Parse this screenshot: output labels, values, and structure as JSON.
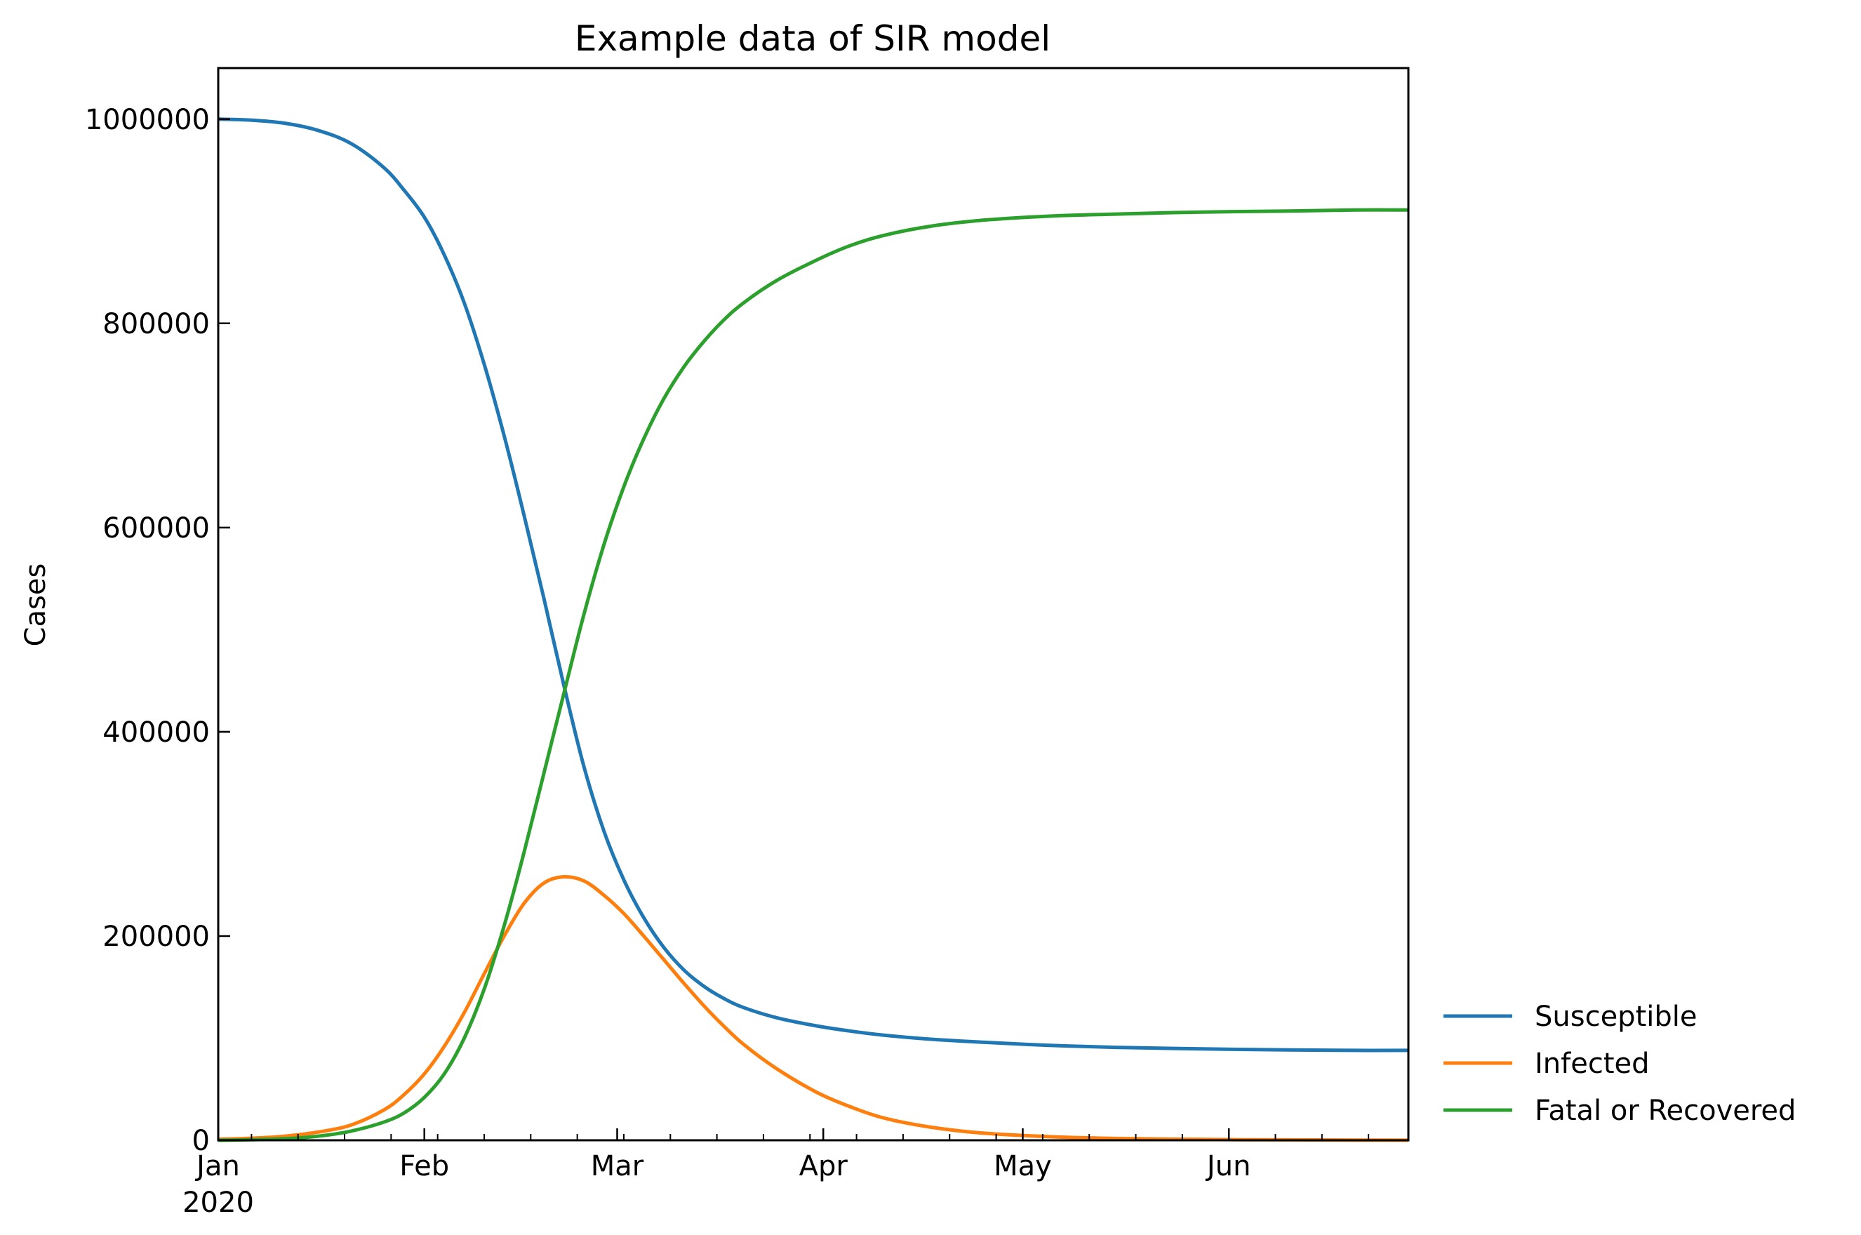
{
  "chart_data": {
    "type": "line",
    "title": "Example data of SIR model",
    "xlabel": "",
    "ylabel": "Cases",
    "x_axis": {
      "type": "date",
      "range": [
        "2020-01-01",
        "2020-06-28"
      ],
      "major_ticks": [
        {
          "date": "2020-01-01",
          "label": "Jan",
          "sublabel": "2020"
        },
        {
          "date": "2020-02-01",
          "label": "Feb"
        },
        {
          "date": "2020-03-01",
          "label": "Mar"
        },
        {
          "date": "2020-04-01",
          "label": "Apr"
        },
        {
          "date": "2020-05-01",
          "label": "May"
        },
        {
          "date": "2020-06-01",
          "label": "Jun"
        }
      ],
      "minor_ticks": [
        "2020-01-06",
        "2020-01-13",
        "2020-01-20",
        "2020-01-27",
        "2020-02-03",
        "2020-02-10",
        "2020-02-17",
        "2020-02-24",
        "2020-03-02",
        "2020-03-09",
        "2020-03-16",
        "2020-03-23",
        "2020-03-30",
        "2020-04-06",
        "2020-04-13",
        "2020-04-20",
        "2020-04-27",
        "2020-05-04",
        "2020-05-11",
        "2020-05-18",
        "2020-05-25",
        "2020-06-01",
        "2020-06-08",
        "2020-06-15",
        "2020-06-22"
      ]
    },
    "ylim": [
      0,
      1050000
    ],
    "yticks": [
      {
        "value": 0,
        "label": "0"
      },
      {
        "value": 200000,
        "label": "200000"
      },
      {
        "value": 400000,
        "label": "400000"
      },
      {
        "value": 600000,
        "label": "600000"
      },
      {
        "value": 800000,
        "label": "800000"
      },
      {
        "value": 1000000,
        "label": "1000000"
      }
    ],
    "grid": false,
    "legend_position": "outside-right-bottom",
    "series": [
      {
        "name": "Susceptible",
        "color": "#1f77b4",
        "points": [
          [
            "2020-01-01",
            1000000
          ],
          [
            "2020-01-06",
            999000
          ],
          [
            "2020-01-11",
            996000
          ],
          [
            "2020-01-16",
            989000
          ],
          [
            "2020-01-21",
            976000
          ],
          [
            "2020-01-26",
            952000
          ],
          [
            "2020-01-29",
            930000
          ],
          [
            "2020-02-01",
            904000
          ],
          [
            "2020-02-04",
            867000
          ],
          [
            "2020-02-07",
            820000
          ],
          [
            "2020-02-10",
            760000
          ],
          [
            "2020-02-13",
            690000
          ],
          [
            "2020-02-16",
            612000
          ],
          [
            "2020-02-19",
            530000
          ],
          [
            "2020-02-22",
            445000
          ],
          [
            "2020-02-25",
            366000
          ],
          [
            "2020-02-28",
            303000
          ],
          [
            "2020-03-02",
            255000
          ],
          [
            "2020-03-05",
            218000
          ],
          [
            "2020-03-08",
            189000
          ],
          [
            "2020-03-11",
            167000
          ],
          [
            "2020-03-14",
            151000
          ],
          [
            "2020-03-17",
            139000
          ],
          [
            "2020-03-20",
            130000
          ],
          [
            "2020-03-25",
            120000
          ],
          [
            "2020-03-31",
            112000
          ],
          [
            "2020-04-05",
            107000
          ],
          [
            "2020-04-10",
            103000
          ],
          [
            "2020-04-17",
            99000
          ],
          [
            "2020-04-25",
            96000
          ],
          [
            "2020-05-05",
            93000
          ],
          [
            "2020-05-15",
            91000
          ],
          [
            "2020-05-28",
            89500
          ],
          [
            "2020-06-10",
            88500
          ],
          [
            "2020-06-20",
            88000
          ],
          [
            "2020-06-28",
            88000
          ]
        ]
      },
      {
        "name": "Infected",
        "color": "#ff7f0e",
        "points": [
          [
            "2020-01-01",
            1000
          ],
          [
            "2020-01-06",
            2000
          ],
          [
            "2020-01-11",
            4000
          ],
          [
            "2020-01-16",
            8000
          ],
          [
            "2020-01-21",
            15000
          ],
          [
            "2020-01-26",
            30000
          ],
          [
            "2020-01-29",
            45000
          ],
          [
            "2020-02-01",
            65000
          ],
          [
            "2020-02-04",
            92000
          ],
          [
            "2020-02-07",
            125000
          ],
          [
            "2020-02-10",
            163000
          ],
          [
            "2020-02-13",
            200000
          ],
          [
            "2020-02-16",
            232000
          ],
          [
            "2020-02-19",
            252000
          ],
          [
            "2020-02-22",
            258000
          ],
          [
            "2020-02-25",
            254000
          ],
          [
            "2020-02-28",
            240000
          ],
          [
            "2020-03-02",
            222000
          ],
          [
            "2020-03-05",
            200000
          ],
          [
            "2020-03-08",
            177000
          ],
          [
            "2020-03-11",
            154000
          ],
          [
            "2020-03-14",
            132000
          ],
          [
            "2020-03-17",
            112000
          ],
          [
            "2020-03-20",
            94000
          ],
          [
            "2020-03-25",
            70000
          ],
          [
            "2020-03-31",
            47000
          ],
          [
            "2020-04-05",
            33000
          ],
          [
            "2020-04-10",
            22000
          ],
          [
            "2020-04-17",
            13000
          ],
          [
            "2020-04-25",
            7000
          ],
          [
            "2020-05-05",
            3500
          ],
          [
            "2020-05-15",
            1800
          ],
          [
            "2020-05-28",
            800
          ],
          [
            "2020-06-10",
            400
          ],
          [
            "2020-06-20",
            200
          ],
          [
            "2020-06-28",
            100
          ]
        ]
      },
      {
        "name": "Fatal or Recovered",
        "color": "#2ca02c",
        "points": [
          [
            "2020-01-01",
            0
          ],
          [
            "2020-01-06",
            500
          ],
          [
            "2020-01-11",
            1500
          ],
          [
            "2020-01-16",
            4000
          ],
          [
            "2020-01-21",
            9000
          ],
          [
            "2020-01-26",
            18000
          ],
          [
            "2020-01-29",
            27000
          ],
          [
            "2020-02-01",
            42000
          ],
          [
            "2020-02-04",
            65000
          ],
          [
            "2020-02-07",
            100000
          ],
          [
            "2020-02-10",
            148000
          ],
          [
            "2020-02-13",
            210000
          ],
          [
            "2020-02-16",
            282000
          ],
          [
            "2020-02-19",
            360000
          ],
          [
            "2020-02-22",
            438000
          ],
          [
            "2020-02-25",
            515000
          ],
          [
            "2020-02-28",
            583000
          ],
          [
            "2020-03-02",
            640000
          ],
          [
            "2020-03-05",
            687000
          ],
          [
            "2020-03-08",
            726000
          ],
          [
            "2020-03-11",
            757000
          ],
          [
            "2020-03-14",
            782000
          ],
          [
            "2020-03-17",
            803000
          ],
          [
            "2020-03-20",
            820000
          ],
          [
            "2020-03-25",
            842000
          ],
          [
            "2020-03-31",
            862000
          ],
          [
            "2020-04-05",
            876000
          ],
          [
            "2020-04-10",
            886000
          ],
          [
            "2020-04-17",
            895000
          ],
          [
            "2020-04-25",
            901000
          ],
          [
            "2020-05-05",
            905000
          ],
          [
            "2020-05-15",
            907000
          ],
          [
            "2020-05-28",
            909000
          ],
          [
            "2020-06-10",
            910000
          ],
          [
            "2020-06-20",
            911000
          ],
          [
            "2020-06-28",
            911000
          ]
        ]
      }
    ]
  }
}
